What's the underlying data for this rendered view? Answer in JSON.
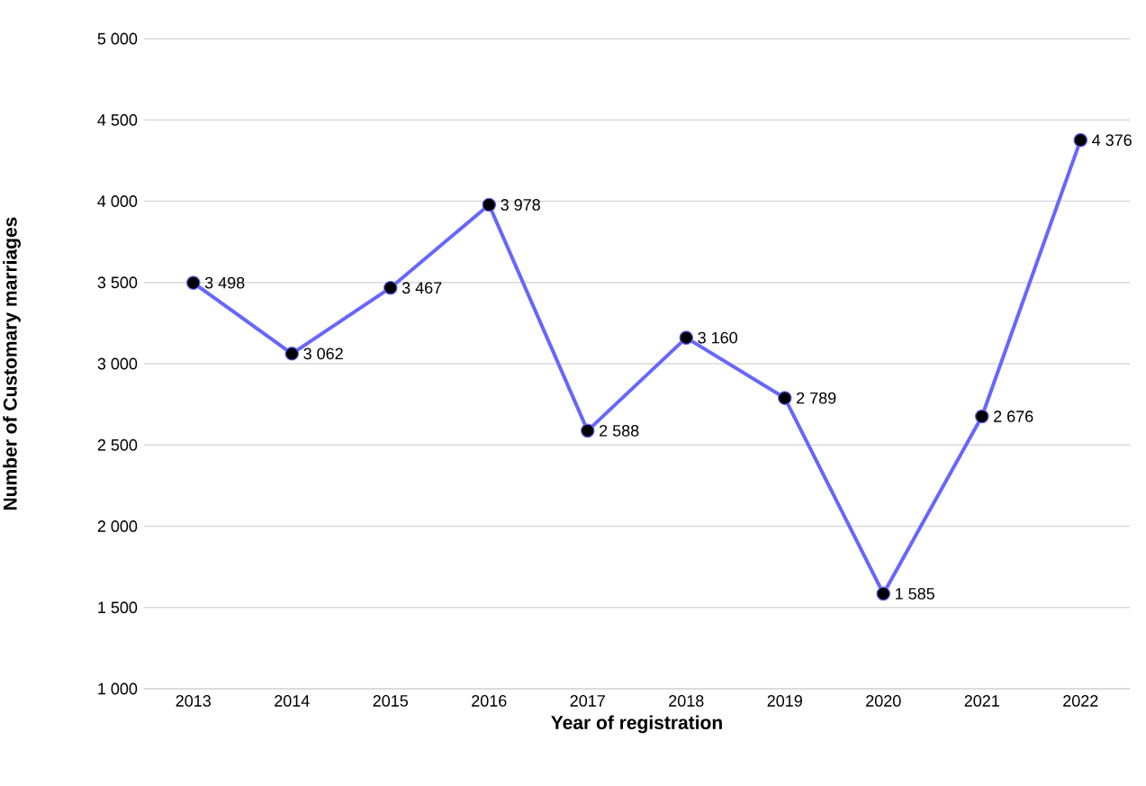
{
  "chart_data": {
    "type": "line",
    "xlabel": "Year of registration",
    "ylabel": "Number of Customary marriages",
    "categories": [
      "2013",
      "2014",
      "2015",
      "2016",
      "2017",
      "2018",
      "2019",
      "2020",
      "2021",
      "2022"
    ],
    "series": [
      {
        "color": "#6666ff",
        "values": [
          3498,
          3062,
          3467,
          3978,
          2588,
          3160,
          2789,
          1585,
          2676,
          4376
        ],
        "value_labels": [
          "3 498",
          "3 062",
          "3 467",
          "3 978",
          "2 588",
          "3 160",
          "2 789",
          "1 585",
          "2 676",
          "4 376"
        ]
      }
    ],
    "ylim": [
      1000,
      5000
    ],
    "yticks": [
      {
        "value": 1000,
        "label": "1 000"
      },
      {
        "value": 1500,
        "label": "1 500"
      },
      {
        "value": 2000,
        "label": "2 000"
      },
      {
        "value": 2500,
        "label": "2 500"
      },
      {
        "value": 3000,
        "label": "3 000"
      },
      {
        "value": 3500,
        "label": "3 500"
      },
      {
        "value": 4000,
        "label": "4 000"
      },
      {
        "value": 4500,
        "label": "4 500"
      },
      {
        "value": 5000,
        "label": "5 000"
      }
    ],
    "grid": "y",
    "marker": "circle",
    "line_style": "solid"
  }
}
